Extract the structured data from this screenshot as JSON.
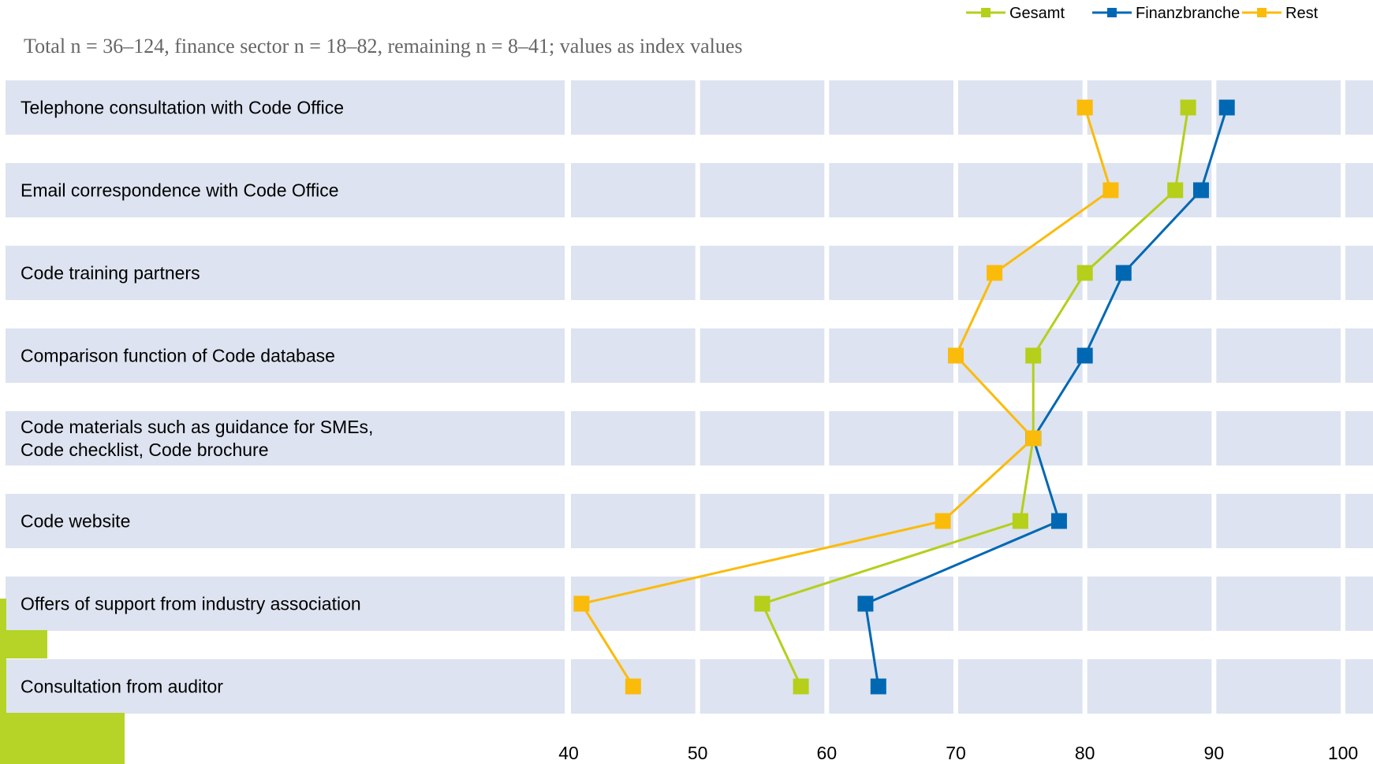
{
  "chart_data": {
    "type": "line",
    "orientation": "horizontal",
    "subtitle": "Total n = 36–124, finance sector n = 18–82, remaining n = 8–41; values as index values",
    "categories": [
      [
        "Telephone consultation with Code Office"
      ],
      [
        "Email correspondence with Code Office"
      ],
      [
        "Code training partners"
      ],
      [
        "Comparison function of Code database"
      ],
      [
        "Code materials such as guidance for SMEs,",
        "Code checklist, Code brochure"
      ],
      [
        "Code website"
      ],
      [
        "Offers of support from industry association"
      ],
      [
        "Consultation from auditor"
      ]
    ],
    "xlim": [
      40,
      100
    ],
    "x_ticks": [
      "40",
      "50",
      "60",
      "70",
      "80",
      "90",
      "100"
    ],
    "grid": true,
    "legend_position": "top-right",
    "series": [
      {
        "name": "Gesamt",
        "color": "#b5cf1b",
        "values": [
          88,
          87,
          80,
          76,
          76,
          75,
          55,
          58
        ]
      },
      {
        "name": "Finanzbranche",
        "color": "#0068b3",
        "values": [
          91,
          89,
          83,
          80,
          76,
          78,
          63,
          64
        ]
      },
      {
        "name": "Rest",
        "color": "#fbbb0a",
        "values": [
          80,
          82,
          73,
          70,
          76,
          69,
          41,
          45
        ]
      }
    ]
  },
  "colors": {
    "band": "#dde3f0",
    "accent_block": "#b5d427"
  }
}
